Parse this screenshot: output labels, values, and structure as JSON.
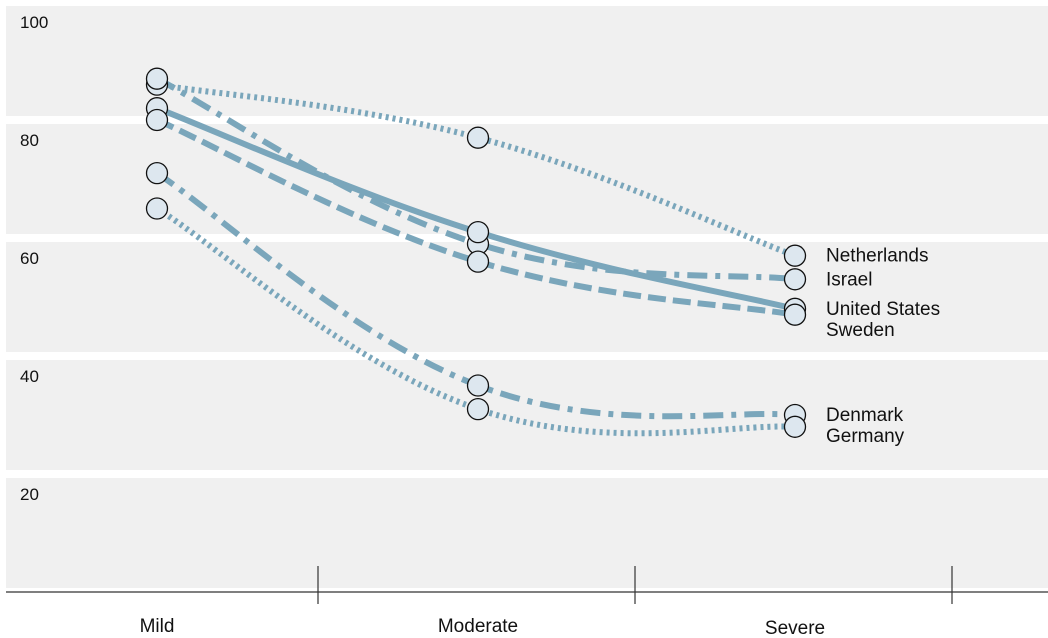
{
  "chart_data": {
    "type": "line",
    "categories": [
      "Mild",
      "Moderate",
      "Severe"
    ],
    "ylim": [
      0,
      100
    ],
    "yticks": [
      100,
      80,
      60,
      40,
      20
    ],
    "grid": "horizontal bands",
    "series": [
      {
        "name": "Netherlands",
        "values": [
          86,
          77,
          57
        ],
        "dash": "dotted"
      },
      {
        "name": "Israel",
        "values": [
          87,
          59,
          53
        ],
        "dash": "dashdot"
      },
      {
        "name": "United States",
        "values": [
          82,
          61,
          48
        ],
        "dash": "solid"
      },
      {
        "name": "Sweden",
        "values": [
          80,
          56,
          47
        ],
        "dash": "dashed"
      },
      {
        "name": "Denmark",
        "values": [
          71,
          35,
          30
        ],
        "dash": "dashdot"
      },
      {
        "name": "Germany",
        "values": [
          65,
          31,
          28
        ],
        "dash": "dotted"
      }
    ],
    "colors": {
      "line": "#7aa6bb",
      "marker_fill": "#dde7ef",
      "marker_stroke": "#111111",
      "band": "#f0f0f0",
      "axis": "#333333"
    }
  }
}
